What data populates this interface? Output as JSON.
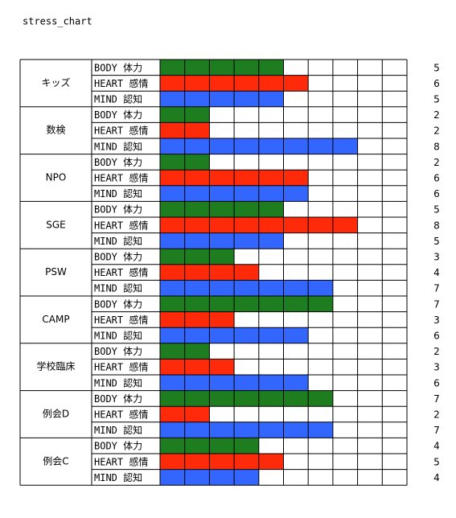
{
  "chart_data": {
    "type": "cell-bar",
    "title": "stress_chart",
    "categories": [
      "キッズ",
      "数検",
      "NPO",
      "SGE",
      "PSW",
      "CAMP",
      "学校臨床",
      "例会D",
      "例会C"
    ],
    "xlim": [
      0,
      10
    ],
    "series": [
      {
        "name": "BODY 体力",
        "color": "#1e7d1e",
        "values": [
          5,
          2,
          2,
          5,
          3,
          7,
          2,
          7,
          4
        ]
      },
      {
        "name": "HEART  感情",
        "color": "#ff2a0a",
        "values": [
          6,
          2,
          6,
          8,
          4,
          3,
          3,
          2,
          5
        ]
      },
      {
        "name": "MIND  認知",
        "color": "#3366ff",
        "values": [
          5,
          8,
          6,
          5,
          7,
          6,
          6,
          7,
          4
        ]
      }
    ]
  }
}
